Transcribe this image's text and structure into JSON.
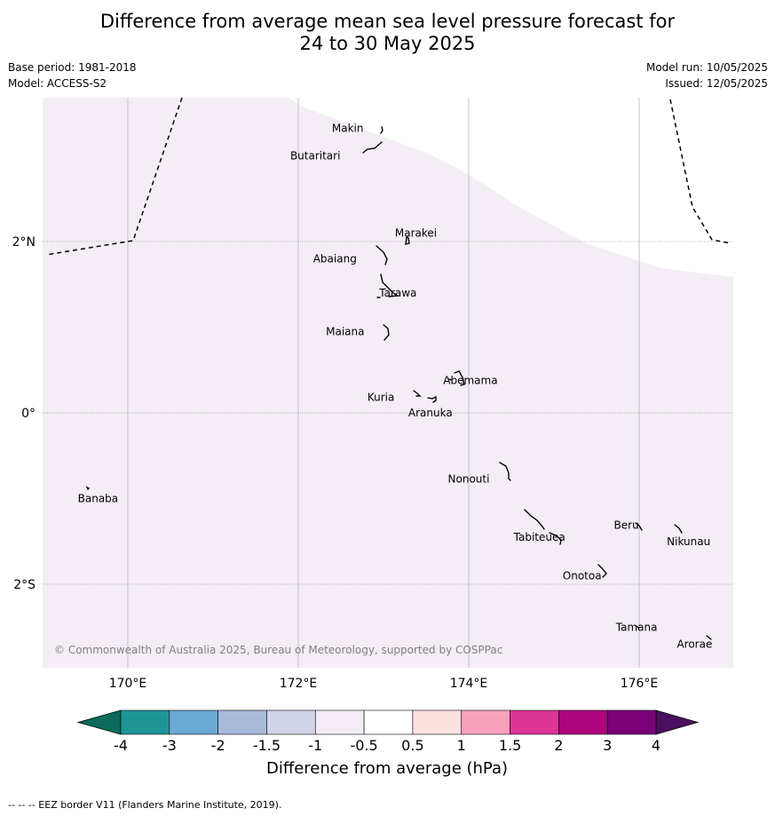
{
  "title": "Difference from average mean sea level pressure forecast for\n24 to 30 May 2025",
  "info_left": {
    "base_period": "Base period: 1981-2018",
    "model": "Model: ACCESS-S2"
  },
  "info_right": {
    "model_run": "Model run: 10/05/2025",
    "issued": "Issued: 12/05/2025"
  },
  "map": {
    "lon_ticks": [
      {
        "lon": 170,
        "label": "170°E"
      },
      {
        "lon": 172,
        "label": "172°E"
      },
      {
        "lon": 174,
        "label": "174°E"
      },
      {
        "lon": 176,
        "label": "176°E"
      }
    ],
    "lat_ticks": [
      {
        "lat": 2,
        "label": "2°N"
      },
      {
        "lat": 0,
        "label": "0°"
      },
      {
        "lat": -2,
        "label": "2°S"
      }
    ],
    "field_color": "#f4edf5",
    "field_category": "-1 to -0.5",
    "places": [
      {
        "name": "Makin",
        "lon": 172.58,
        "lat": 3.32
      },
      {
        "name": "Butaritari",
        "lon": 172.2,
        "lat": 3.0
      },
      {
        "name": "Marakei",
        "lon": 173.38,
        "lat": 2.1
      },
      {
        "name": "Abaiang",
        "lon": 172.43,
        "lat": 1.8
      },
      {
        "name": "Tarawa",
        "lon": 173.17,
        "lat": 1.4
      },
      {
        "name": "Maiana",
        "lon": 172.55,
        "lat": 0.95
      },
      {
        "name": "Abemama",
        "lon": 174.02,
        "lat": 0.38
      },
      {
        "name": "Kuria",
        "lon": 172.97,
        "lat": 0.18
      },
      {
        "name": "Aranuka",
        "lon": 173.55,
        "lat": 0.0
      },
      {
        "name": "Nonouti",
        "lon": 174.0,
        "lat": -0.77
      },
      {
        "name": "Banaba",
        "lon": 169.65,
        "lat": -1.0
      },
      {
        "name": "Beru",
        "lon": 175.85,
        "lat": -1.31
      },
      {
        "name": "Tabiteuea",
        "lon": 174.83,
        "lat": -1.45
      },
      {
        "name": "Nikunau",
        "lon": 176.58,
        "lat": -1.5
      },
      {
        "name": "Onotoa",
        "lon": 175.33,
        "lat": -1.9
      },
      {
        "name": "Tamana",
        "lon": 175.97,
        "lat": -2.5
      },
      {
        "name": "Arorae",
        "lon": 176.65,
        "lat": -2.7
      }
    ],
    "copyright": "© Commonwealth of Australia 2025, Bureau of Meteorology, supported by COSPPac"
  },
  "colorbar": {
    "title": "Difference from average (hPa)",
    "ticks": [
      "-4",
      "-3",
      "-2",
      "-1.5",
      "-1",
      "-0.5",
      "0.5",
      "1",
      "1.5",
      "2",
      "3",
      "4"
    ],
    "under_color": "#0d6b5a",
    "over_color": "#4a0f5e",
    "colors": [
      "#1f9598",
      "#6aaad4",
      "#a8bbdb",
      "#d1d3e8",
      "#f4edf5",
      "#ffffff",
      "#fde0e0",
      "#f8a1bd",
      "#dc3595",
      "#ae047c",
      "#7a0177"
    ]
  },
  "footer": "--  --  -- EEZ border V11 (Flanders Marine Institute, 2019)."
}
